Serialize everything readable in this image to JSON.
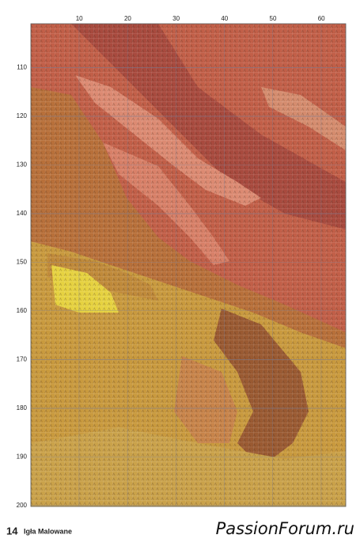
{
  "columns": [
    10,
    20,
    30,
    40,
    50,
    60
  ],
  "rows": [
    110,
    120,
    130,
    140,
    150,
    160,
    170,
    180,
    190,
    200
  ],
  "footer": {
    "page": "14",
    "magazine": "Igła Malowane"
  },
  "watermark": "PassionForum.ru"
}
